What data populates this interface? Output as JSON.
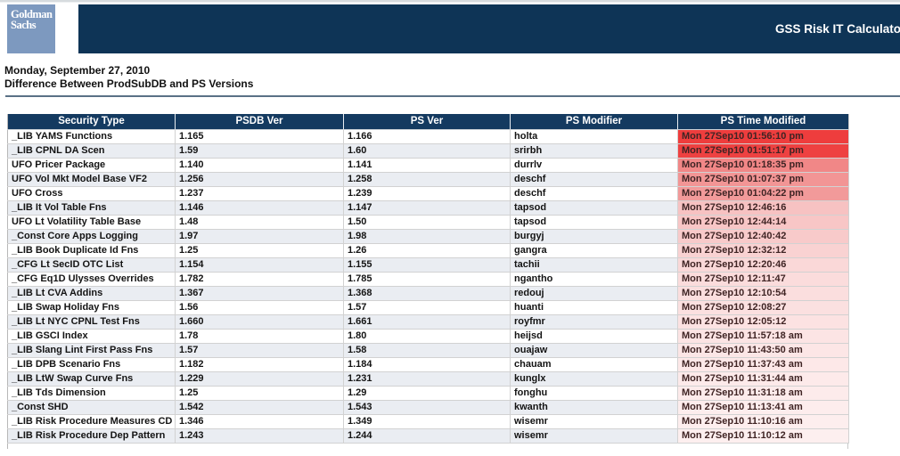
{
  "brand": {
    "logo_line1": "Goldman",
    "logo_line2": "Sachs",
    "banner_title": "GSS Risk IT Calculato"
  },
  "page": {
    "date_heading": "Monday, September 27, 2010",
    "report_title": "Difference Between ProdSubDB and PS Versions"
  },
  "colors": {
    "banner_navy": "#0e3456",
    "table_header_navy": "#143a60",
    "logo_blue": "#7d99bf",
    "alt_row": "#eaedf2",
    "rule": "#5a7186",
    "hot_red": "#ee3d3d",
    "faded_pink": "#fdefef"
  },
  "table": {
    "columns": [
      "Security Type",
      "PSDB Ver",
      "PS Ver",
      "PS Modifier",
      "PS Time Modified"
    ],
    "rows": [
      {
        "security_type": "_LIB YAMS Functions",
        "psdb_ver": "1.165",
        "ps_ver": "1.166",
        "ps_modifier": "holta",
        "ps_time_modified": "Mon 27Sep10 01:56:10 pm",
        "time_bg": "#ee3d3d"
      },
      {
        "security_type": "_LIB CPNL DA Scen",
        "psdb_ver": "1.59",
        "ps_ver": "1.60",
        "ps_modifier": "srirbh",
        "ps_time_modified": "Mon 27Sep10 01:51:17 pm",
        "time_bg": "#ee4141"
      },
      {
        "security_type": "UFO Pricer Package",
        "psdb_ver": "1.140",
        "ps_ver": "1.141",
        "ps_modifier": "durrlv",
        "ps_time_modified": "Mon 27Sep10 01:18:35 pm",
        "time_bg": "#f18787"
      },
      {
        "security_type": "UFO Vol Mkt Model Base VF2",
        "psdb_ver": "1.256",
        "ps_ver": "1.258",
        "ps_modifier": "deschf",
        "ps_time_modified": "Mon 27Sep10 01:07:37 pm",
        "time_bg": "#f29595"
      },
      {
        "security_type": "UFO Cross",
        "psdb_ver": "1.237",
        "ps_ver": "1.239",
        "ps_modifier": "deschf",
        "ps_time_modified": "Mon 27Sep10 01:04:22 pm",
        "time_bg": "#f29a9a"
      },
      {
        "security_type": "_LIB It Vol Table Fns",
        "psdb_ver": "1.146",
        "ps_ver": "1.147",
        "ps_modifier": "tapsod",
        "ps_time_modified": "Mon 27Sep10 12:46:16",
        "time_bg": "#f7c2c2"
      },
      {
        "security_type": "UFO Lt Volatility Table Base",
        "psdb_ver": "1.48",
        "ps_ver": "1.50",
        "ps_modifier": "tapsod",
        "ps_time_modified": "Mon 27Sep10 12:44:14",
        "time_bg": "#f8c6c6"
      },
      {
        "security_type": "_Const Core Apps Logging",
        "psdb_ver": "1.97",
        "ps_ver": "1.98",
        "ps_modifier": "burgyj",
        "ps_time_modified": "Mon 27Sep10 12:40:42",
        "time_bg": "#f8caca"
      },
      {
        "security_type": "_LIB Book Duplicate Id Fns",
        "psdb_ver": "1.25",
        "ps_ver": "1.26",
        "ps_modifier": "gangra",
        "ps_time_modified": "Mon 27Sep10 12:32:12",
        "time_bg": "#f9d2d2"
      },
      {
        "security_type": "_CFG Lt SecID OTC List",
        "psdb_ver": "1.154",
        "ps_ver": "1.155",
        "ps_modifier": "tachii",
        "ps_time_modified": "Mon 27Sep10 12:20:46",
        "time_bg": "#fad8d8"
      },
      {
        "security_type": "_CFG Eq1D Ulysses Overrides",
        "psdb_ver": "1.782",
        "ps_ver": "1.785",
        "ps_modifier": "ngantho",
        "ps_time_modified": "Mon 27Sep10 12:11:47",
        "time_bg": "#fbdcdc"
      },
      {
        "security_type": "_LIB Lt CVA Addins",
        "psdb_ver": "1.367",
        "ps_ver": "1.368",
        "ps_modifier": "redouj",
        "ps_time_modified": "Mon 27Sep10 12:10:54",
        "time_bg": "#fbdede"
      },
      {
        "security_type": "_LIB Swap Holiday Fns",
        "psdb_ver": "1.56",
        "ps_ver": "1.57",
        "ps_modifier": "huanti",
        "ps_time_modified": "Mon 27Sep10 12:08:27",
        "time_bg": "#fbe0e0"
      },
      {
        "security_type": "_LIB Lt NYC CPNL Test Fns",
        "psdb_ver": "1.660",
        "ps_ver": "1.661",
        "ps_modifier": "royfmr",
        "ps_time_modified": "Mon 27Sep10 12:05:12",
        "time_bg": "#fce2e2"
      },
      {
        "security_type": "_LIB GSCI Index",
        "psdb_ver": "1.78",
        "ps_ver": "1.80",
        "ps_modifier": "heijsd",
        "ps_time_modified": "Mon 27Sep10 11:57:18 am",
        "time_bg": "#fce4e4"
      },
      {
        "security_type": "_LIB Slang Lint First Pass Fns",
        "psdb_ver": "1.57",
        "ps_ver": "1.58",
        "ps_modifier": "ouajaw",
        "ps_time_modified": "Mon 27Sep10 11:43:50 am",
        "time_bg": "#fce6e6"
      },
      {
        "security_type": "_LIB DPB Scenario Fns",
        "psdb_ver": "1.182",
        "ps_ver": "1.184",
        "ps_modifier": "chauam",
        "ps_time_modified": "Mon 27Sep10 11:37:43 am",
        "time_bg": "#fde8e8"
      },
      {
        "security_type": "_LIB LtW Swap Curve Fns",
        "psdb_ver": "1.229",
        "ps_ver": "1.231",
        "ps_modifier": "kunglx",
        "ps_time_modified": "Mon 27Sep10 11:31:44 am",
        "time_bg": "#fdeaea"
      },
      {
        "security_type": "_LIB Tds Dimension",
        "psdb_ver": "1.25",
        "ps_ver": "1.29",
        "ps_modifier": "fonghu",
        "ps_time_modified": "Mon 27Sep10 11:31:18 am",
        "time_bg": "#fdebeb"
      },
      {
        "security_type": "_Const SHD",
        "psdb_ver": "1.542",
        "ps_ver": "1.543",
        "ps_modifier": "kwanth",
        "ps_time_modified": "Mon 27Sep10 11:13:41 am",
        "time_bg": "#fdeded"
      },
      {
        "security_type": "_LIB Risk Procedure Measures CD",
        "psdb_ver": "1.346",
        "ps_ver": "1.349",
        "ps_modifier": "wisemr",
        "ps_time_modified": "Mon 27Sep10 11:10:16 am",
        "time_bg": "#fdeeee"
      },
      {
        "security_type": "_LIB Risk Procedure Dep Pattern",
        "psdb_ver": "1.243",
        "ps_ver": "1.244",
        "ps_modifier": "wisemr",
        "ps_time_modified": "Mon 27Sep10 11:10:12 am",
        "time_bg": "#fdefef"
      }
    ]
  }
}
